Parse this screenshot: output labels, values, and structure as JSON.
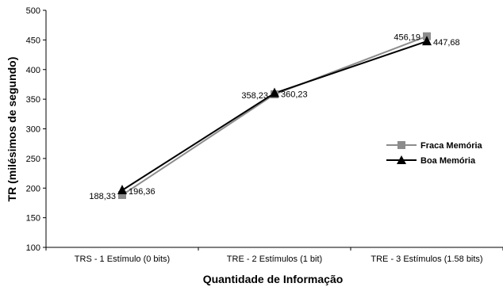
{
  "chart_data": {
    "type": "line",
    "categories": [
      "TRS - 1 Estímulo (0 bits)",
      "TRE - 2 Estímulos (1 bit)",
      "TRE - 3 Estímulos (1.58 bits)"
    ],
    "series": [
      {
        "name": "Fraca Memória",
        "values": [
          188.33,
          358.23,
          456.19
        ],
        "labels": [
          "188,33",
          "358,23",
          "456,19"
        ],
        "color": "#8c8c8c",
        "marker": "square"
      },
      {
        "name": "Boa Memória",
        "values": [
          196.36,
          360.23,
          447.68
        ],
        "labels": [
          "196,36",
          "360,23",
          "447,68"
        ],
        "color": "#000000",
        "marker": "triangle"
      }
    ],
    "xlabel": "Quantidade de Informação",
    "ylabel": "TR (milésimos de segundo)",
    "ylim": [
      100,
      500
    ],
    "yticks": [
      100,
      150,
      200,
      250,
      300,
      350,
      400,
      450,
      500
    ],
    "grid": false,
    "legend_position": "right"
  }
}
